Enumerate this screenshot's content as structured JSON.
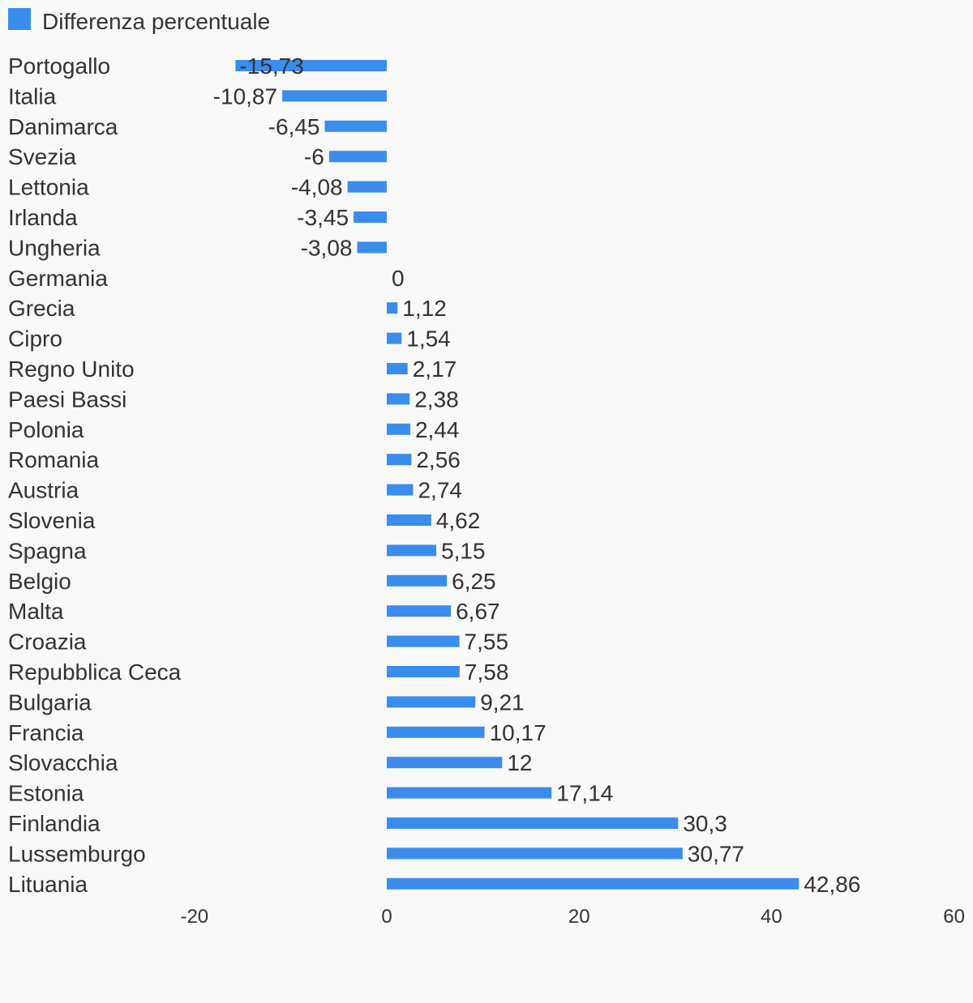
{
  "chart_data": {
    "type": "bar",
    "orientation": "horizontal",
    "categories": [
      "Portogallo",
      "Italia",
      "Danimarca",
      "Svezia",
      "Lettonia",
      "Irlanda",
      "Ungheria",
      "Germania",
      "Grecia",
      "Cipro",
      "Regno Unito",
      "Paesi Bassi",
      "Polonia",
      "Romania",
      "Austria",
      "Slovenia",
      "Spagna",
      "Belgio",
      "Malta",
      "Croazia",
      "Repubblica Ceca",
      "Bulgaria",
      "Francia",
      "Slovacchia",
      "Estonia",
      "Finlandia",
      "Lussemburgo",
      "Lituania"
    ],
    "series": [
      {
        "name": "Differenza percentuale",
        "color": "#3a8ded",
        "values": [
          -15.73,
          -10.87,
          -6.45,
          -6,
          -4.08,
          -3.45,
          -3.08,
          0,
          1.12,
          1.54,
          2.17,
          2.38,
          2.44,
          2.56,
          2.74,
          4.62,
          5.15,
          6.25,
          6.67,
          7.55,
          7.58,
          9.21,
          10.17,
          12,
          17.14,
          30.3,
          30.77,
          42.86
        ],
        "labels": [
          "-15,73",
          "-10,87",
          "-6,45",
          "-6",
          "-4,08",
          "-3,45",
          "-3,08",
          "0",
          "1,12",
          "1,54",
          "2,17",
          "2,38",
          "2,44",
          "2,56",
          "2,74",
          "4,62",
          "5,15",
          "6,25",
          "6,67",
          "7,55",
          "7,58",
          "9,21",
          "10,17",
          "12",
          "17,14",
          "30,3",
          "30,77",
          "42,86"
        ]
      }
    ],
    "xlim": [
      -20,
      60
    ],
    "xticks": [
      -20,
      0,
      20,
      40,
      60
    ],
    "xtick_labels": [
      "-20",
      "0",
      "20",
      "40",
      "60"
    ],
    "legend": "top-left",
    "grid": false,
    "title": "",
    "xlabel": "",
    "ylabel": ""
  }
}
